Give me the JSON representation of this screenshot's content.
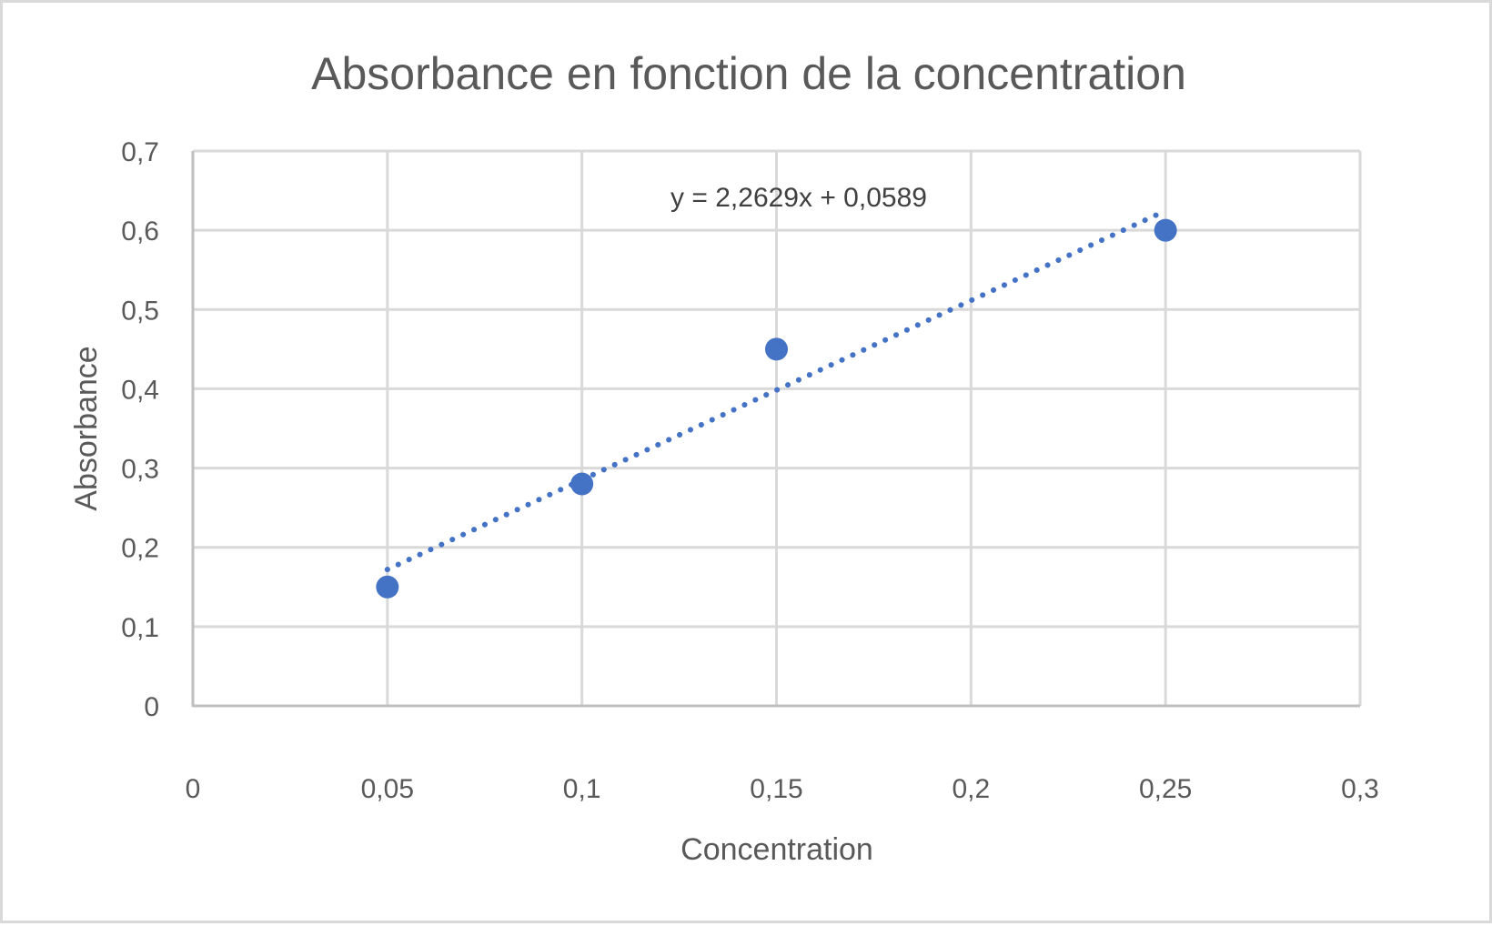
{
  "chart_data": {
    "type": "scatter",
    "title": "Absorbance en fonction de la concentration",
    "xlabel": "Concentration",
    "ylabel": "Absorbance",
    "xlim": [
      0,
      0.3
    ],
    "ylim": [
      0,
      0.7
    ],
    "x_ticks": [
      "0",
      "0,05",
      "0,1",
      "0,15",
      "0,2",
      "0,25",
      "0,3"
    ],
    "y_ticks": [
      "0",
      "0,1",
      "0,2",
      "0,3",
      "0,4",
      "0,5",
      "0,6",
      "0,7"
    ],
    "grid": true,
    "legend": null,
    "series": [
      {
        "name": "Absorbance",
        "color": "#4472c4",
        "x": [
          0.05,
          0.1,
          0.15,
          0.25
        ],
        "y": [
          0.15,
          0.28,
          0.45,
          0.6
        ]
      }
    ],
    "trendline": {
      "type": "linear",
      "style": "dotted",
      "color": "#4472c4",
      "slope": 2.2629,
      "intercept": 0.0589,
      "x_range": [
        0.05,
        0.25
      ],
      "equation_label": "y = 2,2629x + 0,0589"
    }
  },
  "colors": {
    "text": "#595959",
    "grid": "#d9d9d9",
    "axis": "#bfbfbf",
    "series": "#4472c4",
    "border": "#d9d9d9"
  }
}
